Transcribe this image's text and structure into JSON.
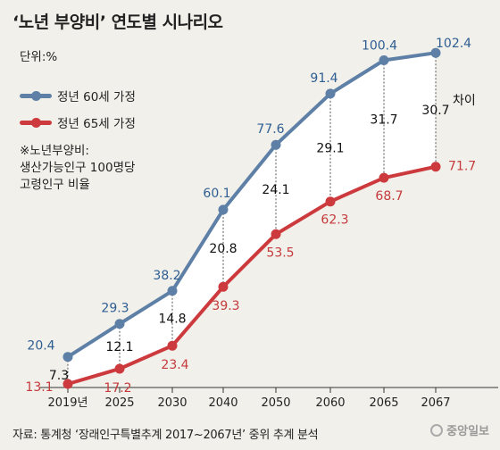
{
  "title": "‘노년 부양비’ 연도별 시나리오",
  "unit": "단위:%",
  "note": [
    "※노년부양비:",
    "생산가능인구 100명당",
    "고령인구 비율"
  ],
  "source": "자료: 통계청 ‘장래인구특별추계 2017~2067년’ 중위 추계 분석",
  "logo": "중앙일보",
  "diff_label": "차이",
  "colors": {
    "blue": "#5f80a6",
    "red": "#cd3a3e",
    "blue_text": "#2f5e93",
    "red_text": "#c53a3c"
  },
  "chart_data": {
    "type": "line",
    "x": [
      "2019년",
      "2025",
      "2030",
      "2040",
      "2050",
      "2060",
      "2065",
      "2067"
    ],
    "series": [
      {
        "name": "정년 60세 가정",
        "values": [
          20.4,
          29.3,
          38.2,
          60.1,
          77.6,
          91.4,
          100.4,
          102.4
        ]
      },
      {
        "name": "정년 65세 가정",
        "values": [
          13.1,
          17.2,
          23.4,
          39.3,
          53.5,
          62.3,
          68.7,
          71.7
        ]
      }
    ],
    "differences": [
      7.3,
      12.1,
      14.8,
      20.8,
      24.1,
      29.1,
      31.7,
      30.7
    ],
    "ylim": [
      10,
      105
    ]
  }
}
